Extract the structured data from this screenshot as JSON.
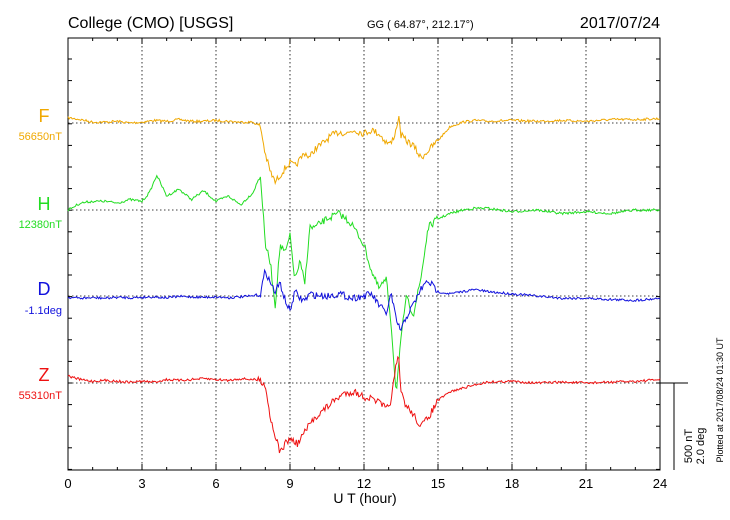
{
  "header": {
    "station": "College (CMO)  [USGS]",
    "coords": "GG ( 64.87°, 212.17°)",
    "date": "2017/07/24"
  },
  "footer_note": "Plotted at 2017/08/24 01:30 UT",
  "scale_bar": {
    "line1": "500 nT",
    "line2": "2.0 deg"
  },
  "colors": {
    "F": "#f0a800",
    "H": "#22dd22",
    "D": "#1111dd",
    "Z": "#ee1111",
    "axis": "#000000"
  },
  "chart_data": {
    "type": "line",
    "title": "College (CMO)  [USGS]",
    "xlabel": "U T (hour)",
    "ylabel": "",
    "xlim": [
      0,
      24
    ],
    "x_ticks": [
      0,
      3,
      6,
      9,
      12,
      15,
      18,
      21,
      24
    ],
    "grid": true,
    "series": [
      {
        "name": "F",
        "baseline_label": "56650nT",
        "unit": "nT",
        "x": [
          0,
          0.5,
          1,
          1.5,
          2,
          2.5,
          3,
          3.5,
          4,
          4.5,
          5,
          5.5,
          6,
          6.5,
          7,
          7.5,
          7.8,
          8,
          8.2,
          8.4,
          8.6,
          8.8,
          9,
          9.2,
          9.4,
          9.6,
          9.8,
          10,
          10.3,
          10.6,
          11,
          11.3,
          11.6,
          12,
          12.3,
          12.6,
          12.9,
          13.1,
          13.3,
          13.4,
          13.5,
          13.7,
          14,
          14.3,
          14.6,
          15,
          15.5,
          16,
          16.5,
          17,
          18,
          19,
          20,
          21,
          22,
          23,
          24
        ],
        "values": [
          30,
          20,
          5,
          5,
          10,
          0,
          5,
          15,
          10,
          20,
          10,
          10,
          15,
          10,
          5,
          5,
          -20,
          -180,
          -280,
          -340,
          -300,
          -260,
          -230,
          -250,
          -210,
          -170,
          -200,
          -150,
          -120,
          -80,
          -50,
          -60,
          -40,
          -60,
          -40,
          -60,
          -110,
          -120,
          -40,
          40,
          -70,
          -100,
          -130,
          -200,
          -160,
          -100,
          -20,
          5,
          15,
          10,
          15,
          10,
          15,
          10,
          20,
          20,
          25
        ]
      },
      {
        "name": "H",
        "baseline_label": "12380nT",
        "unit": "nT",
        "x": [
          0,
          0.5,
          1,
          1.5,
          2,
          2.5,
          3,
          3.3,
          3.6,
          4,
          4.5,
          5,
          5.5,
          6,
          6.5,
          7,
          7.5,
          7.8,
          8,
          8.2,
          8.4,
          8.6,
          8.8,
          9,
          9.2,
          9.4,
          9.6,
          9.8,
          10,
          10.5,
          11,
          11.5,
          12,
          12.3,
          12.6,
          12.9,
          13.1,
          13.3,
          13.5,
          13.7,
          14,
          14.3,
          14.6,
          15,
          15.5,
          16,
          16.5,
          17,
          18,
          19,
          20,
          21,
          22,
          23,
          24
        ],
        "values": [
          0,
          40,
          50,
          50,
          40,
          60,
          50,
          100,
          200,
          80,
          120,
          60,
          110,
          50,
          80,
          30,
          100,
          200,
          -200,
          -300,
          -550,
          -200,
          -250,
          -150,
          -400,
          -300,
          -420,
          -100,
          -100,
          -50,
          -20,
          -80,
          -200,
          -350,
          -450,
          -400,
          -650,
          -1050,
          -750,
          -500,
          -600,
          -400,
          -100,
          -50,
          -20,
          0,
          10,
          10,
          -10,
          0,
          -20,
          -10,
          -20,
          0,
          0
        ]
      },
      {
        "name": "D",
        "baseline_label": "-1.1deg",
        "unit": "deg",
        "x": [
          0,
          0.5,
          1,
          1.5,
          2,
          2.5,
          3,
          3.5,
          4,
          4.5,
          5,
          5.5,
          6,
          6.5,
          7,
          7.5,
          7.8,
          8,
          8.2,
          8.4,
          8.6,
          8.8,
          9,
          9.2,
          9.4,
          9.6,
          9.8,
          10,
          10.5,
          11,
          11.5,
          12,
          12.3,
          12.6,
          12.9,
          13.1,
          13.3,
          13.5,
          13.7,
          14,
          14.3,
          14.6,
          15,
          15.5,
          16,
          16.5,
          17,
          18,
          19,
          20,
          21,
          22,
          23,
          24
        ],
        "values": [
          -0.03,
          -0.05,
          -0.04,
          -0.05,
          -0.03,
          -0.04,
          -0.03,
          -0.02,
          -0.04,
          -0.01,
          -0.02,
          -0.03,
          -0.02,
          -0.04,
          -0.02,
          0.0,
          0.05,
          0.6,
          0.3,
          0.1,
          0.3,
          -0.1,
          -0.35,
          0.1,
          -0.05,
          -0.1,
          0.05,
          0.02,
          0.0,
          0.05,
          -0.05,
          0.0,
          0.05,
          -0.2,
          -0.4,
          0.05,
          -0.55,
          -0.8,
          -0.5,
          -0.2,
          0.15,
          0.35,
          0.1,
          0.05,
          0.1,
          0.15,
          0.1,
          0.05,
          0.0,
          -0.05,
          -0.05,
          -0.08,
          -0.1,
          -0.05
        ]
      },
      {
        "name": "Z",
        "baseline_label": "55310nT",
        "unit": "nT",
        "x": [
          0,
          0.5,
          1,
          1.5,
          2,
          2.5,
          3,
          3.5,
          4,
          4.5,
          5,
          5.5,
          6,
          6.5,
          7,
          7.5,
          7.8,
          8,
          8.2,
          8.4,
          8.6,
          8.8,
          9,
          9.3,
          9.6,
          10,
          10.4,
          10.8,
          11.2,
          11.6,
          12,
          12.3,
          12.6,
          12.9,
          13.1,
          13.3,
          13.4,
          13.5,
          13.7,
          14,
          14.3,
          14.6,
          15,
          15.5,
          16,
          16.5,
          17,
          18,
          19,
          20,
          21,
          22,
          23,
          24
        ],
        "values": [
          40,
          20,
          10,
          15,
          10,
          5,
          10,
          5,
          20,
          15,
          20,
          25,
          20,
          15,
          25,
          20,
          15,
          -10,
          -200,
          -300,
          -400,
          -350,
          -320,
          -350,
          -280,
          -200,
          -150,
          -100,
          -60,
          -50,
          -80,
          -90,
          -110,
          -150,
          -100,
          100,
          150,
          -50,
          -130,
          -180,
          -250,
          -200,
          -100,
          -50,
          -30,
          -10,
          5,
          10,
          0,
          5,
          0,
          5,
          10,
          20
        ]
      }
    ],
    "scale": {
      "nT_per_500": 500,
      "deg_per_bar": 2.0
    }
  }
}
